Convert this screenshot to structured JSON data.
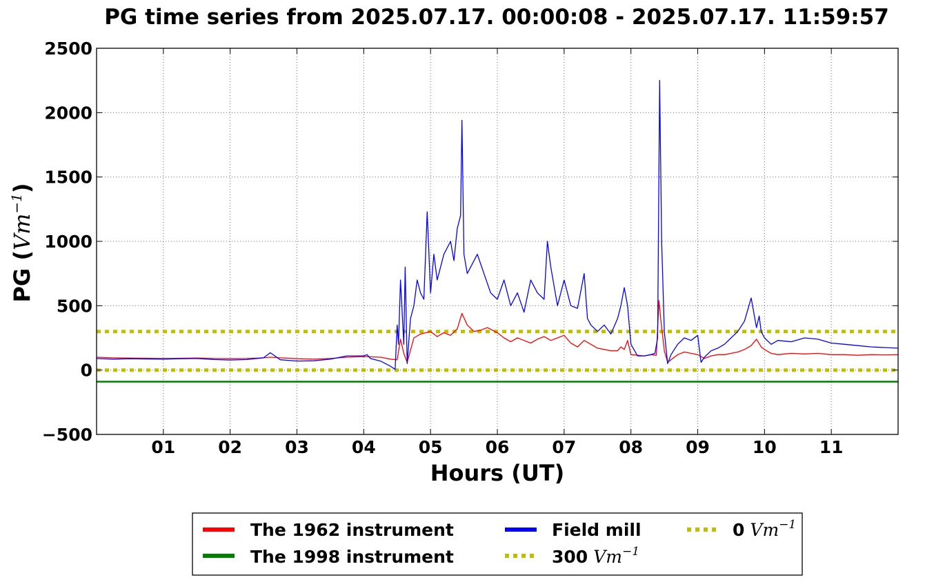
{
  "chart_data": {
    "type": "line",
    "title": "PG time series from 2025.07.17. 00:00:08 - 2025.07.17. 11:59:57",
    "xlabel": "Hours (UT)",
    "ylabel_text": "PG (",
    "ylabel_unit": "Vm",
    "ylabel_exp": "−1",
    "ylabel_close": ")",
    "xlim": [
      0,
      12
    ],
    "ylim": [
      -500,
      2500
    ],
    "grid": true,
    "legend_placement": "below",
    "x_ticks": [
      {
        "value": 1,
        "label": "01"
      },
      {
        "value": 2,
        "label": "02"
      },
      {
        "value": 3,
        "label": "03"
      },
      {
        "value": 4,
        "label": "04"
      },
      {
        "value": 5,
        "label": "05"
      },
      {
        "value": 6,
        "label": "06"
      },
      {
        "value": 7,
        "label": "07"
      },
      {
        "value": 8,
        "label": "08"
      },
      {
        "value": 9,
        "label": "09"
      },
      {
        "value": 10,
        "label": "10"
      },
      {
        "value": 11,
        "label": "11"
      }
    ],
    "y_ticks": [
      {
        "value": 2500,
        "label": "2500"
      },
      {
        "value": 2000,
        "label": "2000"
      },
      {
        "value": 1500,
        "label": "1500"
      },
      {
        "value": 1000,
        "label": "1000"
      },
      {
        "value": 500,
        "label": "500"
      },
      {
        "value": 0,
        "label": "0"
      },
      {
        "value": -500,
        "label": "−500"
      }
    ],
    "series": [
      {
        "name": "The 1962 instrument",
        "color": "#ff0000",
        "style": "solid",
        "x": [
          0,
          0.25,
          0.5,
          0.75,
          1,
          1.25,
          1.5,
          1.75,
          2,
          2.25,
          2.5,
          2.6,
          2.75,
          3,
          3.25,
          3.5,
          3.75,
          4,
          4.25,
          4.4,
          4.5,
          4.55,
          4.6,
          4.65,
          4.75,
          4.85,
          5,
          5.1,
          5.2,
          5.3,
          5.4,
          5.47,
          5.55,
          5.65,
          5.75,
          5.85,
          6,
          6.1,
          6.2,
          6.3,
          6.4,
          6.5,
          6.6,
          6.7,
          6.8,
          6.9,
          7,
          7.1,
          7.2,
          7.3,
          7.4,
          7.5,
          7.6,
          7.7,
          7.8,
          7.85,
          7.9,
          7.95,
          8,
          8.1,
          8.2,
          8.3,
          8.38,
          8.42,
          8.45,
          8.5,
          8.55,
          8.6,
          8.7,
          8.8,
          8.9,
          9,
          9.1,
          9.2,
          9.3,
          9.4,
          9.5,
          9.6,
          9.7,
          9.8,
          9.88,
          9.95,
          10,
          10.1,
          10.2,
          10.4,
          10.6,
          10.8,
          11,
          11.2,
          11.4,
          11.6,
          11.8,
          12
        ],
        "y": [
          100,
          95,
          93,
          92,
          90,
          92,
          94,
          90,
          88,
          90,
          95,
          100,
          95,
          88,
          85,
          90,
          100,
          105,
          100,
          85,
          80,
          240,
          130,
          60,
          250,
          280,
          300,
          260,
          290,
          270,
          320,
          440,
          350,
          300,
          310,
          330,
          290,
          250,
          220,
          250,
          230,
          210,
          240,
          260,
          230,
          250,
          270,
          210,
          180,
          230,
          200,
          170,
          160,
          150,
          150,
          180,
          160,
          230,
          120,
          115,
          110,
          120,
          115,
          540,
          380,
          150,
          60,
          80,
          120,
          140,
          130,
          120,
          90,
          110,
          120,
          120,
          130,
          140,
          160,
          190,
          240,
          180,
          160,
          130,
          120,
          130,
          125,
          130,
          120,
          120,
          115,
          120,
          118,
          120
        ]
      },
      {
        "name": "The 1998 instrument",
        "color": "#008000",
        "style": "solid",
        "x": [
          0,
          12
        ],
        "y": [
          -90,
          -90
        ]
      },
      {
        "name": "Field mill",
        "color": "#0000ff",
        "style": "solid",
        "x": [
          0,
          0.25,
          0.5,
          0.75,
          1,
          1.25,
          1.5,
          1.75,
          2,
          2.25,
          2.5,
          2.6,
          2.75,
          3,
          3.25,
          3.5,
          3.75,
          4,
          4.05,
          4.1,
          4.25,
          4.4,
          4.47,
          4.5,
          4.52,
          4.55,
          4.6,
          4.62,
          4.65,
          4.7,
          4.75,
          4.8,
          4.85,
          4.9,
          4.95,
          5,
          5.05,
          5.1,
          5.15,
          5.2,
          5.3,
          5.35,
          5.4,
          5.45,
          5.47,
          5.5,
          5.55,
          5.6,
          5.7,
          5.8,
          5.9,
          6,
          6.1,
          6.2,
          6.3,
          6.4,
          6.5,
          6.6,
          6.7,
          6.75,
          6.8,
          6.9,
          7,
          7.1,
          7.2,
          7.3,
          7.35,
          7.4,
          7.5,
          7.6,
          7.7,
          7.8,
          7.85,
          7.9,
          7.95,
          8,
          8.1,
          8.2,
          8.3,
          8.36,
          8.4,
          8.43,
          8.46,
          8.5,
          8.55,
          8.6,
          8.7,
          8.8,
          8.9,
          9,
          9.05,
          9.1,
          9.2,
          9.3,
          9.4,
          9.5,
          9.6,
          9.7,
          9.8,
          9.88,
          9.92,
          9.95,
          10,
          10.1,
          10.2,
          10.4,
          10.6,
          10.8,
          11,
          11.2,
          11.4,
          11.6,
          11.8,
          12
        ],
        "y": [
          90,
          85,
          88,
          86,
          85,
          88,
          90,
          82,
          78,
          82,
          95,
          135,
          80,
          70,
          72,
          85,
          110,
          110,
          120,
          90,
          70,
          30,
          5,
          350,
          200,
          700,
          200,
          800,
          50,
          400,
          500,
          700,
          600,
          550,
          1230,
          600,
          900,
          700,
          800,
          900,
          1000,
          850,
          1100,
          1200,
          1940,
          900,
          750,
          800,
          900,
          750,
          600,
          550,
          700,
          500,
          600,
          450,
          700,
          600,
          550,
          1000,
          800,
          500,
          700,
          500,
          480,
          750,
          400,
          350,
          300,
          350,
          280,
          400,
          500,
          640,
          500,
          200,
          110,
          110,
          120,
          130,
          250,
          2250,
          1000,
          300,
          50,
          120,
          200,
          250,
          230,
          270,
          60,
          100,
          150,
          170,
          200,
          250,
          300,
          380,
          560,
          330,
          420,
          300,
          250,
          200,
          230,
          220,
          250,
          240,
          210,
          200,
          190,
          180,
          175,
          170
        ]
      },
      {
        "name": "300",
        "name_unit": "Vm",
        "name_exp": "−1",
        "color": "#bfbf00",
        "style": "dotted",
        "x": [
          0,
          12
        ],
        "y": [
          300,
          300
        ]
      },
      {
        "name": "0",
        "name_unit": "Vm",
        "name_exp": "−1",
        "color": "#bfbf00",
        "style": "dotted",
        "x": [
          0,
          12
        ],
        "y": [
          0,
          0
        ]
      }
    ]
  }
}
